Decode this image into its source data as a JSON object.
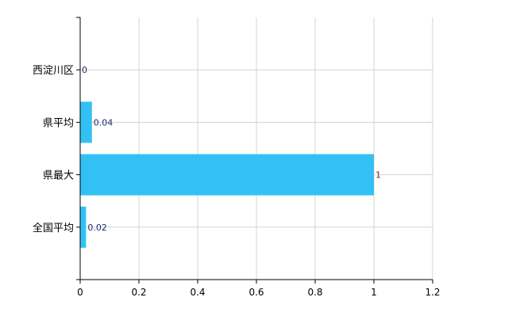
{
  "chart_data": {
    "type": "bar",
    "orientation": "horizontal",
    "categories": [
      "西淀川区",
      "県平均",
      "県最大",
      "全国平均"
    ],
    "values": [
      0,
      0.04,
      1,
      0.02
    ],
    "data_labels": [
      "0",
      "0.04",
      "1",
      "0.02"
    ],
    "xlim": [
      0,
      1.2
    ],
    "x_ticks": [
      "0",
      "0.2",
      "0.4",
      "0.6",
      "0.8",
      "1",
      "1.2"
    ],
    "title": "",
    "xlabel": "",
    "ylabel": "",
    "grid": true,
    "colors": {
      "bar": "#33c1f5",
      "grid": "#d0d4d8",
      "label": "#1a2a6a",
      "max_label": "#8b1a1a"
    }
  }
}
